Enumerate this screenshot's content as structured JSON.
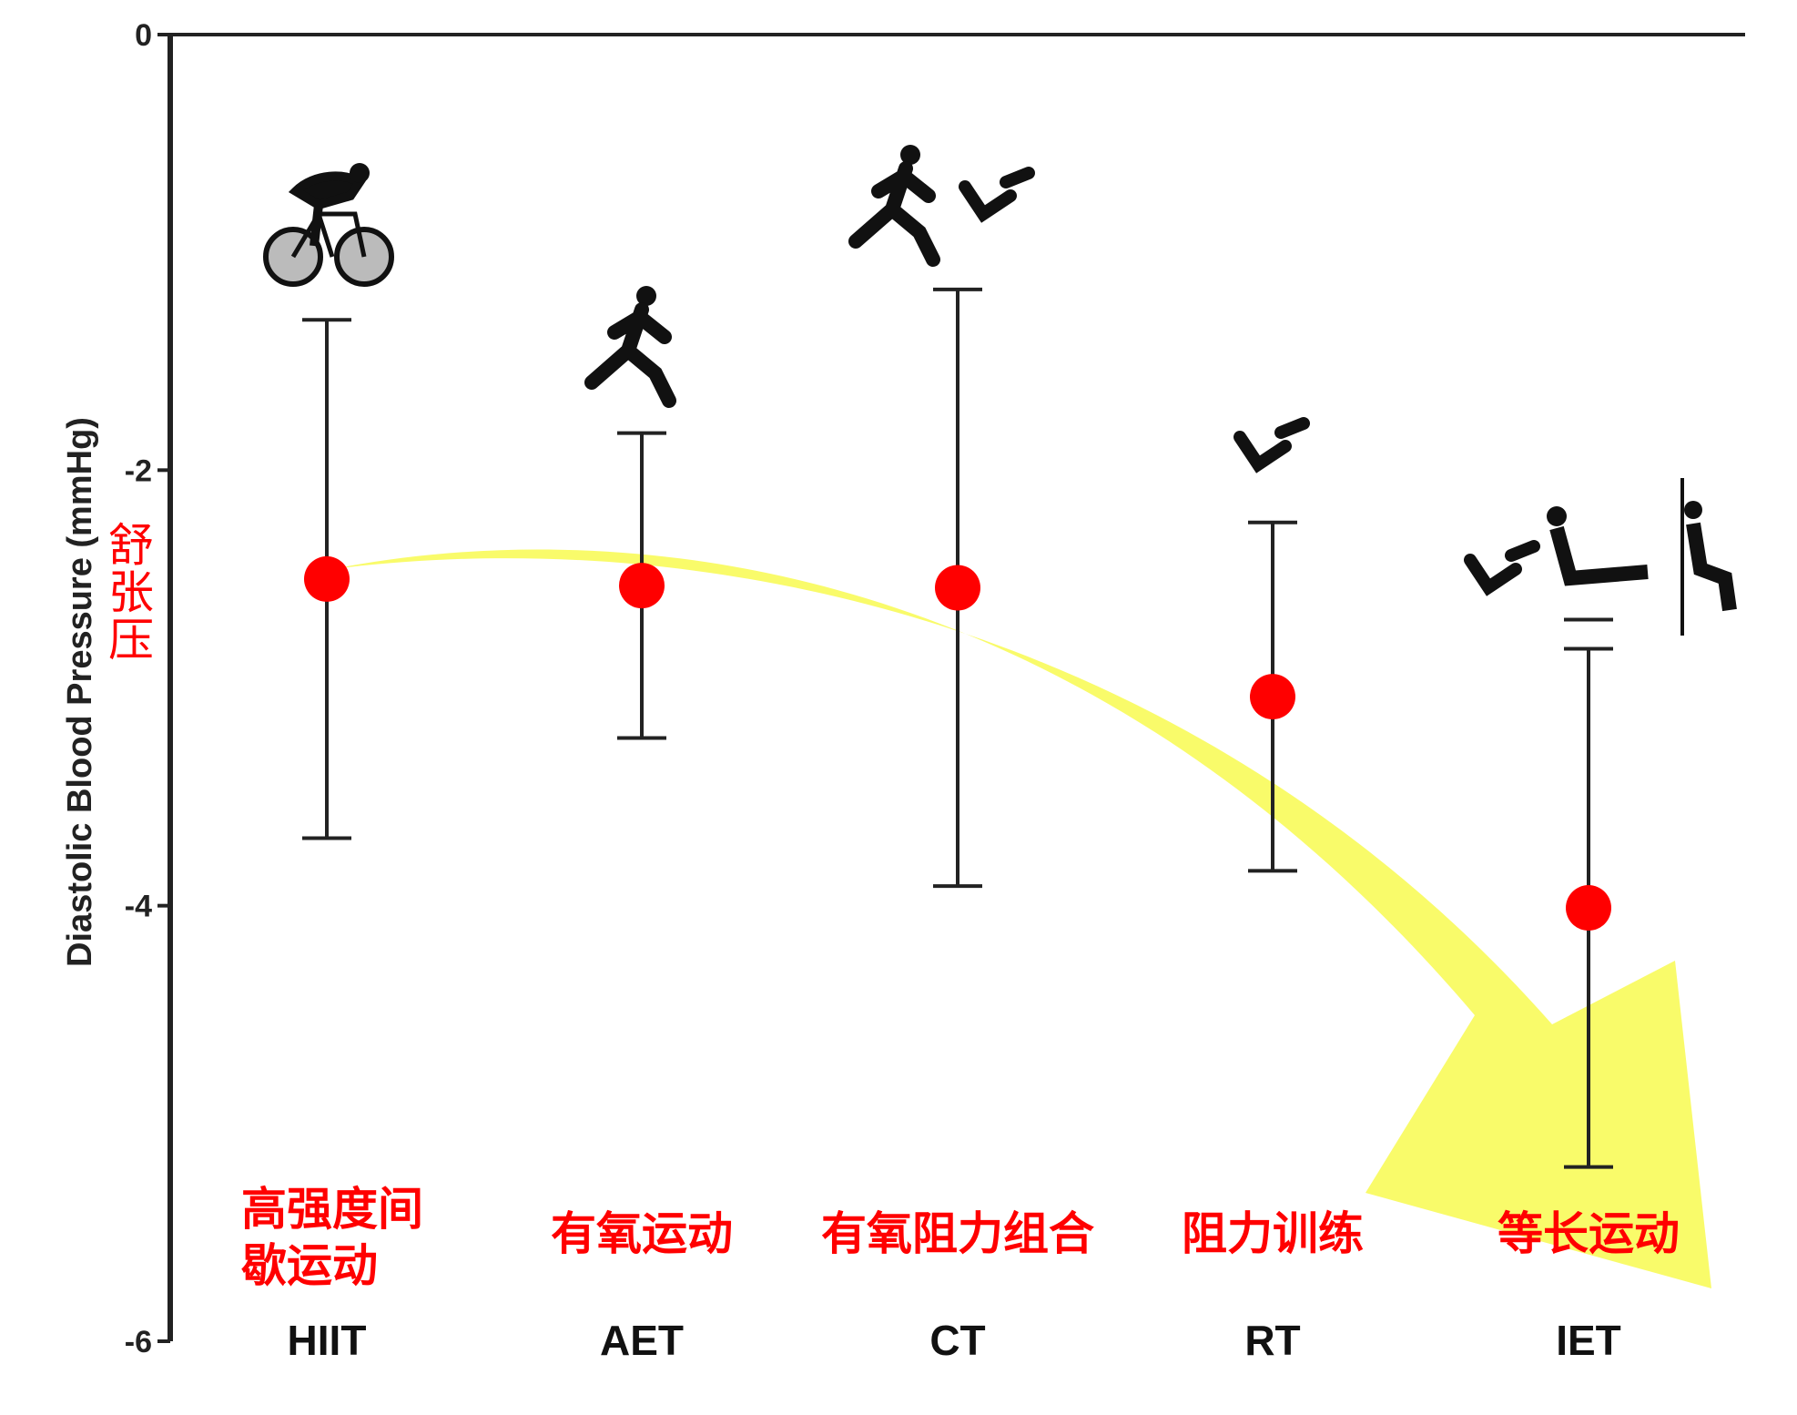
{
  "chart_data": {
    "type": "scatter",
    "title": "",
    "xlabel": "",
    "ylabel": "Diastolic Blood Pressure (mmHg)",
    "ylabel_annotation": "舒张压",
    "ylim": [
      -6,
      0
    ],
    "yticks": [
      "0",
      "-2",
      "-4",
      "-6"
    ],
    "grid": false,
    "categories": [
      "HIIT",
      "AET",
      "CT",
      "RT",
      "IET"
    ],
    "category_annotations": [
      [
        "高强度间",
        "歇运动"
      ],
      [
        "有氧运动"
      ],
      [
        "有氧阻力组合"
      ],
      [
        "阻力训练"
      ],
      [
        "等长运动"
      ]
    ],
    "series": [
      {
        "values": [
          -2.5,
          -2.53,
          -2.54,
          -3.04,
          -4.01
        ],
        "upper": [
          -1.31,
          -1.83,
          -1.17,
          -2.24,
          -2.82
        ],
        "lower": [
          -3.69,
          -3.23,
          -3.91,
          -3.84,
          -5.2
        ]
      }
    ],
    "icons": [
      "cycling-icon",
      "running-icon",
      "running-and-weightlifting-icon",
      "weightlifting-icon",
      "isometric-exercise-icon"
    ],
    "annotations": [
      "yellow-trend-arrow-down"
    ],
    "colors": {
      "point": "#ff0000",
      "annotation_text": "#ff0000",
      "arrow": "#f8fb5a",
      "axis": "#222222"
    }
  }
}
